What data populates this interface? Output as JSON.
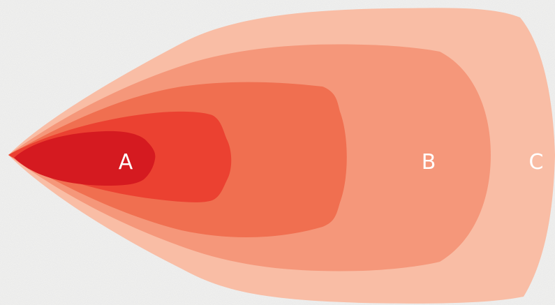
{
  "labels": {
    "a": "A",
    "b": "B",
    "c": "C"
  },
  "colors": {
    "background": "#f1f1f0",
    "zone_1": "#f9bda5",
    "zone_2": "#f5977a",
    "zone_3": "#f06f50",
    "zone_4": "#eb4131",
    "zone_5": "#d51a20",
    "label": "#ffffff"
  }
}
